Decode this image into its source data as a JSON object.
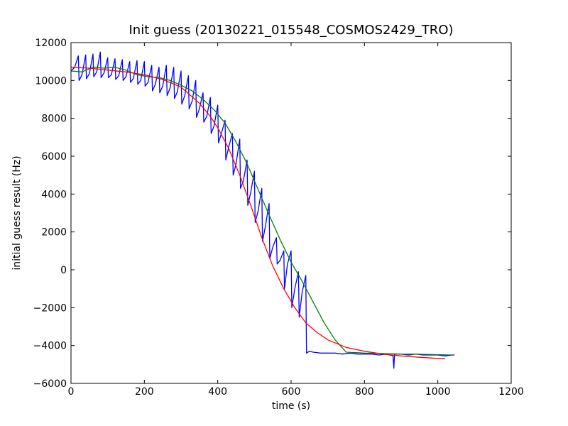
{
  "chart_data": {
    "type": "line",
    "title": "Init guess (20130221_015548_COSMOS2429_TRO)",
    "xlabel": "time (s)",
    "ylabel": "initial guess result (Hz)",
    "xlim": [
      0,
      1200
    ],
    "ylim": [
      -6000,
      12000
    ],
    "xticks": [
      0,
      200,
      400,
      600,
      800,
      1000,
      1200
    ],
    "yticks": [
      -6000,
      -4000,
      -2000,
      0,
      2000,
      4000,
      6000,
      8000,
      10000,
      12000
    ],
    "xtick_labels": [
      "0",
      "200",
      "400",
      "600",
      "800",
      "1000",
      "1200"
    ],
    "ytick_labels": [
      "−6000",
      "−4000",
      "−2000",
      "0",
      "2000",
      "4000",
      "6000",
      "8000",
      "10000",
      "12000"
    ],
    "grid": false,
    "legend": "none",
    "series": [
      {
        "color": "#0000ff",
        "x": [
          0,
          10,
          20,
          22,
          30,
          40,
          42,
          50,
          60,
          62,
          70,
          80,
          82,
          90,
          100,
          102,
          110,
          120,
          122,
          130,
          140,
          142,
          150,
          160,
          162,
          170,
          180,
          182,
          190,
          200,
          202,
          210,
          220,
          222,
          230,
          240,
          242,
          250,
          260,
          262,
          270,
          280,
          282,
          290,
          300,
          302,
          310,
          320,
          322,
          330,
          340,
          342,
          350,
          360,
          362,
          370,
          380,
          382,
          390,
          400,
          402,
          410,
          420,
          422,
          430,
          440,
          442,
          450,
          460,
          462,
          470,
          480,
          482,
          490,
          500,
          502,
          510,
          520,
          522,
          530,
          540,
          542,
          550,
          560,
          562,
          570,
          580,
          582,
          590,
          600,
          602,
          610,
          620,
          622,
          630,
          640,
          642,
          650,
          660,
          680,
          700,
          720,
          740,
          760,
          780,
          800,
          820,
          840,
          860,
          878,
          880,
          882,
          900,
          920,
          940,
          960,
          980,
          1000,
          1020,
          1040,
          1046
        ],
        "y": [
          10500,
          10700,
          11300,
          10000,
          10300,
          11350,
          10100,
          10350,
          11400,
          10200,
          10450,
          11500,
          10150,
          10400,
          11200,
          10150,
          10300,
          11150,
          10050,
          10250,
          11100,
          10000,
          10200,
          11000,
          9900,
          10100,
          11050,
          9800,
          10000,
          11000,
          9700,
          9900,
          10800,
          9450,
          9800,
          10700,
          9350,
          9700,
          10800,
          9200,
          9600,
          10700,
          9050,
          9400,
          10500,
          8750,
          9200,
          10250,
          8500,
          8900,
          10000,
          8050,
          8500,
          9350,
          7800,
          8100,
          9100,
          7200,
          7600,
          8700,
          6700,
          7200,
          7900,
          5800,
          6500,
          7200,
          5000,
          5600,
          6900,
          4300,
          4700,
          5800,
          3400,
          4100,
          5200,
          2500,
          3100,
          4300,
          1500,
          2300,
          3500,
          600,
          1200,
          1700,
          300,
          500,
          1000,
          -1000,
          300,
          1000,
          -2000,
          -1000,
          -100,
          -2500,
          -1200,
          -300,
          -4400,
          -4300,
          -4350,
          -4400,
          -4400,
          -4400,
          -4450,
          -4400,
          -4450,
          -4450,
          -4450,
          -4500,
          -4450,
          -4550,
          -5200,
          -4450,
          -4450,
          -4500,
          -4450,
          -4500,
          -4500,
          -4500,
          -4550,
          -4500,
          -4500
        ]
      },
      {
        "color": "#008000",
        "x": [
          0,
          30,
          60,
          90,
          120,
          150,
          180,
          210,
          240,
          270,
          300,
          330,
          360,
          390,
          420,
          450,
          480,
          510,
          540,
          570,
          600,
          630,
          660,
          690,
          720,
          750,
          800,
          850,
          900,
          950,
          1000,
          1040
        ],
        "y": [
          10500,
          10450,
          10700,
          10650,
          10700,
          10550,
          10300,
          10200,
          10150,
          10000,
          9750,
          9450,
          9000,
          8450,
          7750,
          6750,
          5600,
          4250,
          2900,
          1600,
          400,
          -600,
          -1700,
          -2800,
          -3700,
          -4350,
          -4400,
          -4420,
          -4450,
          -4460,
          -4480,
          -4500
        ]
      },
      {
        "color": "#ff0000",
        "x": [
          0,
          50,
          100,
          150,
          200,
          250,
          300,
          350,
          380,
          400,
          430,
          460,
          490,
          520,
          550,
          580,
          610,
          640,
          670,
          700,
          750,
          800,
          850,
          900,
          950,
          1000,
          1020
        ],
        "y": [
          10700,
          10650,
          10550,
          10450,
          10300,
          10050,
          9650,
          8800,
          8100,
          7500,
          6400,
          5000,
          3400,
          1700,
          200,
          -1000,
          -2000,
          -2800,
          -3300,
          -3700,
          -4100,
          -4300,
          -4450,
          -4550,
          -4620,
          -4680,
          -4700
        ]
      }
    ]
  }
}
